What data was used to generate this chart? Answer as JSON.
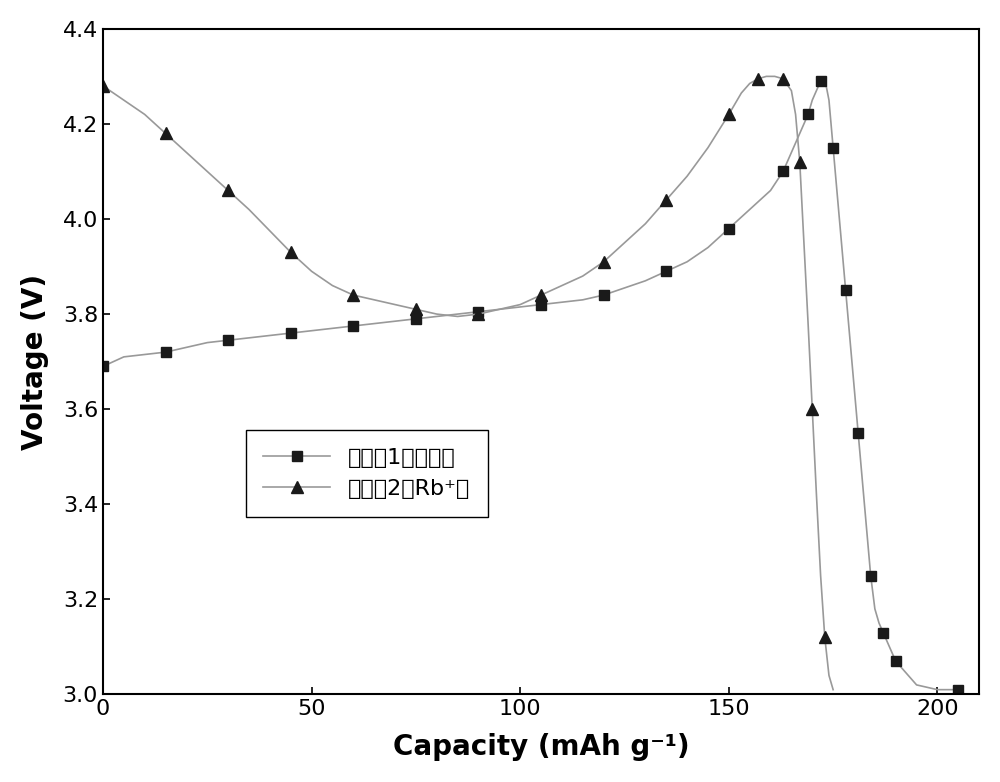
{
  "title": "",
  "xlabel": "Capacity (mAh g⁻¹)",
  "ylabel": "Voltage (V)",
  "xlim": [
    0,
    210
  ],
  "ylim": [
    3.0,
    4.4
  ],
  "xticks": [
    0,
    50,
    100,
    150,
    200
  ],
  "yticks": [
    3.0,
    3.2,
    3.4,
    3.6,
    3.8,
    4.0,
    4.2,
    4.4
  ],
  "legend1": "实施例1（对比）",
  "legend2": "实施例2（Rb⁺）",
  "line_color": "#808080",
  "marker_color": "#1a1a1a",
  "background_color": "#ffffff",
  "series1_x": [
    0,
    5,
    10,
    15,
    20,
    25,
    30,
    35,
    40,
    45,
    50,
    55,
    60,
    65,
    70,
    75,
    80,
    85,
    90,
    95,
    100,
    105,
    110,
    115,
    120,
    125,
    130,
    135,
    140,
    145,
    150,
    155,
    160,
    163,
    165,
    167,
    169,
    170,
    171,
    172,
    173,
    174,
    175,
    176,
    177,
    178,
    179,
    180,
    181,
    182,
    183,
    184,
    185,
    186,
    187,
    188,
    189,
    190,
    195,
    200,
    205
  ],
  "series1_y": [
    3.69,
    3.71,
    3.715,
    3.72,
    3.73,
    3.74,
    3.745,
    3.75,
    3.755,
    3.76,
    3.765,
    3.77,
    3.775,
    3.78,
    3.785,
    3.79,
    3.795,
    3.8,
    3.805,
    3.81,
    3.815,
    3.82,
    3.825,
    3.83,
    3.84,
    3.855,
    3.87,
    3.89,
    3.91,
    3.94,
    3.98,
    4.02,
    4.06,
    4.1,
    4.14,
    4.18,
    4.22,
    4.25,
    4.27,
    4.29,
    4.295,
    4.25,
    4.15,
    4.05,
    3.95,
    3.85,
    3.75,
    3.65,
    3.55,
    3.45,
    3.35,
    3.25,
    3.18,
    3.15,
    3.13,
    3.11,
    3.09,
    3.07,
    3.02,
    3.01,
    3.01
  ],
  "series2_x": [
    0,
    5,
    10,
    15,
    20,
    25,
    30,
    35,
    40,
    45,
    50,
    55,
    60,
    65,
    70,
    75,
    80,
    85,
    90,
    95,
    100,
    105,
    110,
    115,
    120,
    125,
    130,
    135,
    140,
    145,
    150,
    153,
    155,
    157,
    159,
    161,
    163,
    165,
    166,
    167,
    168,
    169,
    170,
    171,
    172,
    173,
    174,
    175
  ],
  "series2_y": [
    4.28,
    4.25,
    4.22,
    4.18,
    4.14,
    4.1,
    4.06,
    4.02,
    3.975,
    3.93,
    3.89,
    3.86,
    3.84,
    3.83,
    3.82,
    3.81,
    3.8,
    3.795,
    3.8,
    3.81,
    3.82,
    3.84,
    3.86,
    3.88,
    3.91,
    3.95,
    3.99,
    4.04,
    4.09,
    4.15,
    4.22,
    4.265,
    4.285,
    4.295,
    4.3,
    4.3,
    4.295,
    4.27,
    4.22,
    4.12,
    3.95,
    3.78,
    3.6,
    3.42,
    3.25,
    3.12,
    3.04,
    3.01
  ]
}
